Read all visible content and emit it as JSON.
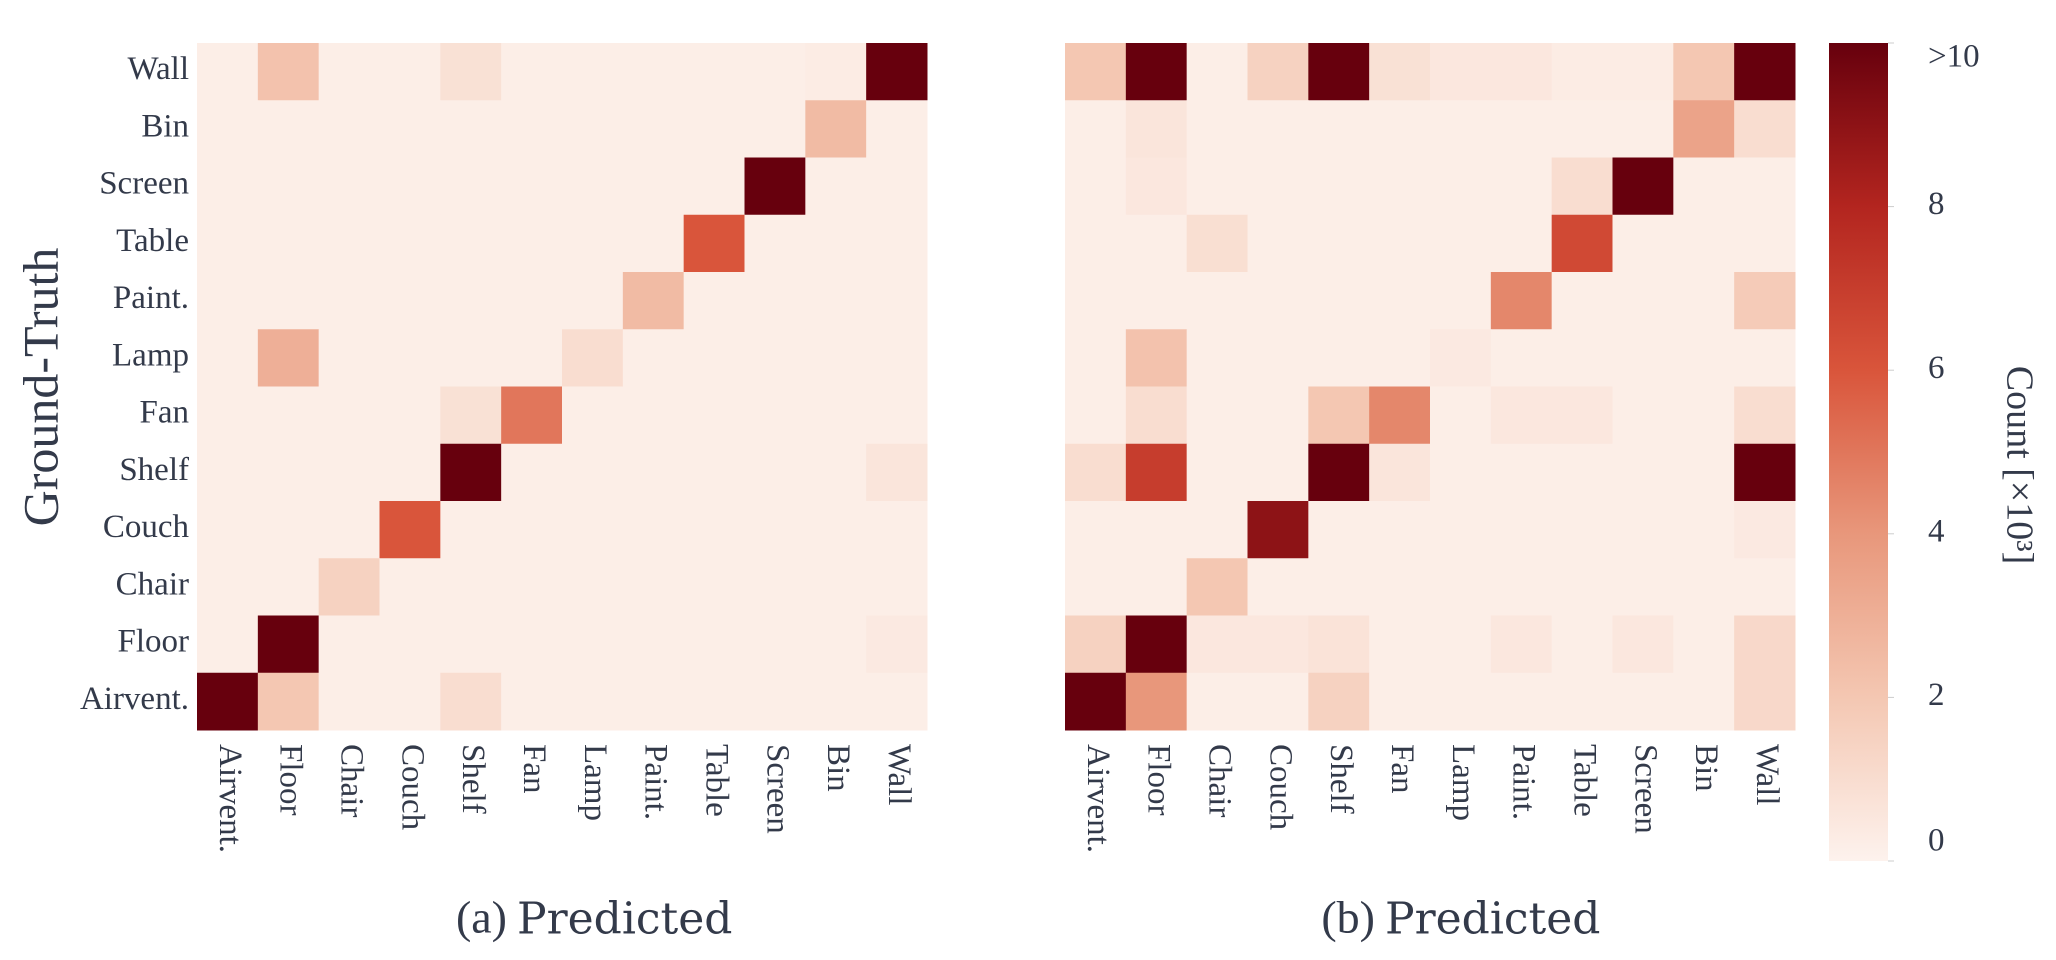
{
  "chart_data": [
    {
      "type": "heatmap",
      "subcaption": "(a)",
      "xlabel": "Predicted",
      "ylabel": "Ground-Truth",
      "x_categories": [
        "Airvent.",
        "Floor",
        "Chair",
        "Couch",
        "Shelf",
        "Fan",
        "Lamp",
        "Paint.",
        "Table",
        "Screen",
        "Bin",
        "Wall"
      ],
      "y_categories": [
        "Wall",
        "Bin",
        "Screen",
        "Table",
        "Paint.",
        "Lamp",
        "Fan",
        "Shelf",
        "Couch",
        "Chair",
        "Floor",
        "Airvent."
      ],
      "values": [
        [
          0.2,
          2.2,
          0.2,
          0.2,
          0.8,
          0.2,
          0.2,
          0.2,
          0.2,
          0.2,
          0.3,
          10
        ],
        [
          0.2,
          0.2,
          0.2,
          0.2,
          0.2,
          0.2,
          0.2,
          0.2,
          0.2,
          0.2,
          2.5,
          0.2
        ],
        [
          0.2,
          0.2,
          0.2,
          0.2,
          0.2,
          0.2,
          0.2,
          0.2,
          0.2,
          10,
          0.2,
          0.2
        ],
        [
          0.2,
          0.2,
          0.2,
          0.2,
          0.2,
          0.2,
          0.2,
          0.2,
          6,
          0.2,
          0.2,
          0.2
        ],
        [
          0.2,
          0.2,
          0.2,
          0.2,
          0.2,
          0.2,
          0.2,
          2.5,
          0.2,
          0.2,
          0.2,
          0.2
        ],
        [
          0.2,
          3,
          0.2,
          0.2,
          0.2,
          0.2,
          1,
          0.2,
          0.2,
          0.2,
          0.2,
          0.2
        ],
        [
          0.2,
          0.2,
          0.2,
          0.2,
          0.8,
          5,
          0.2,
          0.2,
          0.2,
          0.2,
          0.2,
          0.2
        ],
        [
          0.2,
          0.2,
          0.2,
          0.2,
          10,
          0.2,
          0.2,
          0.2,
          0.2,
          0.2,
          0.2,
          0.6
        ],
        [
          0.2,
          0.2,
          0.2,
          6,
          0.2,
          0.2,
          0.2,
          0.2,
          0.2,
          0.2,
          0.2,
          0.2
        ],
        [
          0.2,
          0.2,
          1.5,
          0.2,
          0.2,
          0.2,
          0.2,
          0.2,
          0.2,
          0.2,
          0.2,
          0.2
        ],
        [
          0.2,
          10,
          0.2,
          0.2,
          0.2,
          0.2,
          0.2,
          0.2,
          0.2,
          0.2,
          0.2,
          0.4
        ],
        [
          10,
          2,
          0.2,
          0.2,
          1,
          0.2,
          0.2,
          0.2,
          0.2,
          0.2,
          0.2,
          0.2
        ]
      ]
    },
    {
      "type": "heatmap",
      "subcaption": "(b)",
      "xlabel": "Predicted",
      "x_categories": [
        "Airvent.",
        "Floor",
        "Chair",
        "Couch",
        "Shelf",
        "Fan",
        "Lamp",
        "Paint.",
        "Table",
        "Screen",
        "Bin",
        "Wall"
      ],
      "values": [
        [
          2,
          10,
          0.2,
          1.5,
          10,
          0.8,
          0.5,
          0.5,
          0.3,
          0.3,
          2,
          10
        ],
        [
          0.2,
          0.6,
          0.2,
          0.2,
          0.2,
          0.2,
          0.2,
          0.2,
          0.2,
          0.2,
          3.5,
          1
        ],
        [
          0.2,
          0.5,
          0.2,
          0.2,
          0.2,
          0.2,
          0.2,
          0.2,
          1,
          10,
          0.2,
          0.2
        ],
        [
          0.2,
          0.2,
          0.9,
          0.2,
          0.2,
          0.2,
          0.2,
          0.2,
          6.5,
          0.2,
          0.2,
          0.2
        ],
        [
          0.2,
          0.2,
          0.2,
          0.2,
          0.2,
          0.2,
          0.2,
          4.5,
          0.2,
          0.2,
          0.2,
          1.8
        ],
        [
          0.2,
          2.2,
          0.2,
          0.2,
          0.2,
          0.2,
          0.4,
          0.2,
          0.2,
          0.2,
          0.2,
          0.2
        ],
        [
          0.2,
          1,
          0.2,
          0.2,
          2,
          4.5,
          0.2,
          0.5,
          0.5,
          0.2,
          0.2,
          1
        ],
        [
          1,
          7,
          0.2,
          0.2,
          10,
          0.6,
          0.2,
          0.2,
          0.2,
          0.2,
          0.2,
          10
        ],
        [
          0.2,
          0.2,
          0.2,
          9,
          0.2,
          0.2,
          0.2,
          0.2,
          0.2,
          0.2,
          0.2,
          0.4
        ],
        [
          0.2,
          0.2,
          2,
          0.2,
          0.2,
          0.2,
          0.2,
          0.2,
          0.2,
          0.2,
          0.2,
          0.2
        ],
        [
          1.5,
          10,
          0.5,
          0.5,
          0.7,
          0.2,
          0.2,
          0.5,
          0.2,
          0.5,
          0.2,
          1.2
        ],
        [
          10,
          4,
          0.2,
          0.2,
          1.5,
          0.2,
          0.2,
          0.2,
          0.2,
          0.2,
          0.2,
          1.2
        ]
      ]
    }
  ],
  "colorbar": {
    "label": "Count [×10³]",
    "colormap": "Reds",
    "ylim": [
      0,
      10
    ],
    "yticks": [
      0,
      2,
      4,
      6,
      8,
      {
        "value": 10,
        "label": ">10"
      }
    ]
  }
}
